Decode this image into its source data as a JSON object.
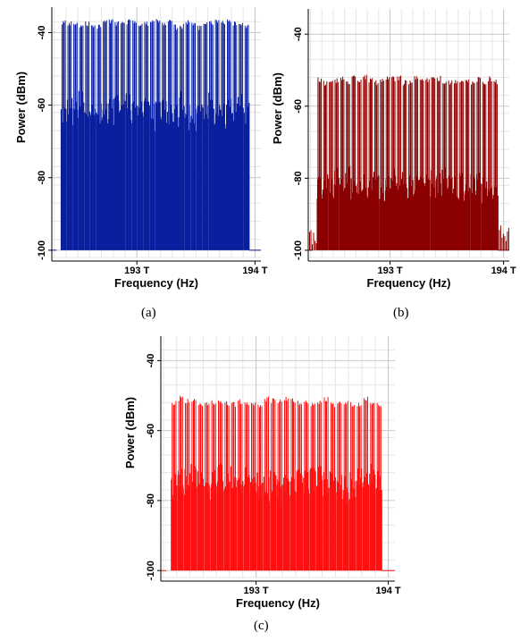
{
  "chart_data": [
    {
      "type": "line",
      "caption": "(a)",
      "xlabel": "Frequency (Hz)",
      "ylabel": "Power (dBm)",
      "xlim": [
        192.28,
        194.05
      ],
      "ylim": [
        -102,
        -33
      ],
      "x_ticks": [
        {
          "value": 193.0,
          "label": "193 T"
        },
        {
          "value": 194.0,
          "label": "194 T"
        }
      ],
      "y_ticks": [
        {
          "value": -40,
          "label": "-40"
        },
        {
          "value": -60,
          "label": "-60"
        },
        {
          "value": -80,
          "label": "-80"
        },
        {
          "value": -100,
          "label": "-100"
        }
      ],
      "grid": true,
      "color": "#0a1f9e",
      "noise_floor_dbm": -100,
      "peak_power_dbm": -37,
      "shoulder_power_dbm": -62,
      "num_channels": 32,
      "first_channel_thz": 192.38,
      "channel_spacing_thz": 0.05
    },
    {
      "type": "line",
      "caption": "(b)",
      "xlabel": "Frequency (Hz)",
      "ylabel": "Power (dBm)",
      "xlim": [
        192.28,
        194.05
      ],
      "ylim": [
        -102,
        -33
      ],
      "x_ticks": [
        {
          "value": 193.0,
          "label": "193 T"
        },
        {
          "value": 194.0,
          "label": "194 T"
        }
      ],
      "y_ticks": [
        {
          "value": -40,
          "label": "-40"
        },
        {
          "value": -60,
          "label": "-60"
        },
        {
          "value": -80,
          "label": "-80"
        },
        {
          "value": -100,
          "label": "-100"
        }
      ],
      "grid": true,
      "color": "#8b0000",
      "noise_floor_dbm": -100,
      "peak_power_dbm": -52,
      "shoulder_power_dbm": -82,
      "num_channels": 32,
      "first_channel_thz": 192.38,
      "channel_spacing_thz": 0.05
    },
    {
      "type": "line",
      "caption": "(c)",
      "xlabel": "Frequency (Hz)",
      "ylabel": "Power (dBm)",
      "xlim": [
        192.28,
        194.05
      ],
      "ylim": [
        -102,
        -33
      ],
      "x_ticks": [
        {
          "value": 193.0,
          "label": "193 T"
        },
        {
          "value": 194.0,
          "label": "194 T"
        }
      ],
      "y_ticks": [
        {
          "value": -40,
          "label": "-40"
        },
        {
          "value": -60,
          "label": "-60"
        },
        {
          "value": -80,
          "label": "-80"
        },
        {
          "value": -100,
          "label": "-100"
        }
      ],
      "grid": true,
      "color": "#ff1010",
      "noise_floor_dbm": -100,
      "peak_power_dbm": -51,
      "shoulder_power_dbm": -75,
      "num_channels": 32,
      "first_channel_thz": 192.38,
      "channel_spacing_thz": 0.05
    }
  ]
}
